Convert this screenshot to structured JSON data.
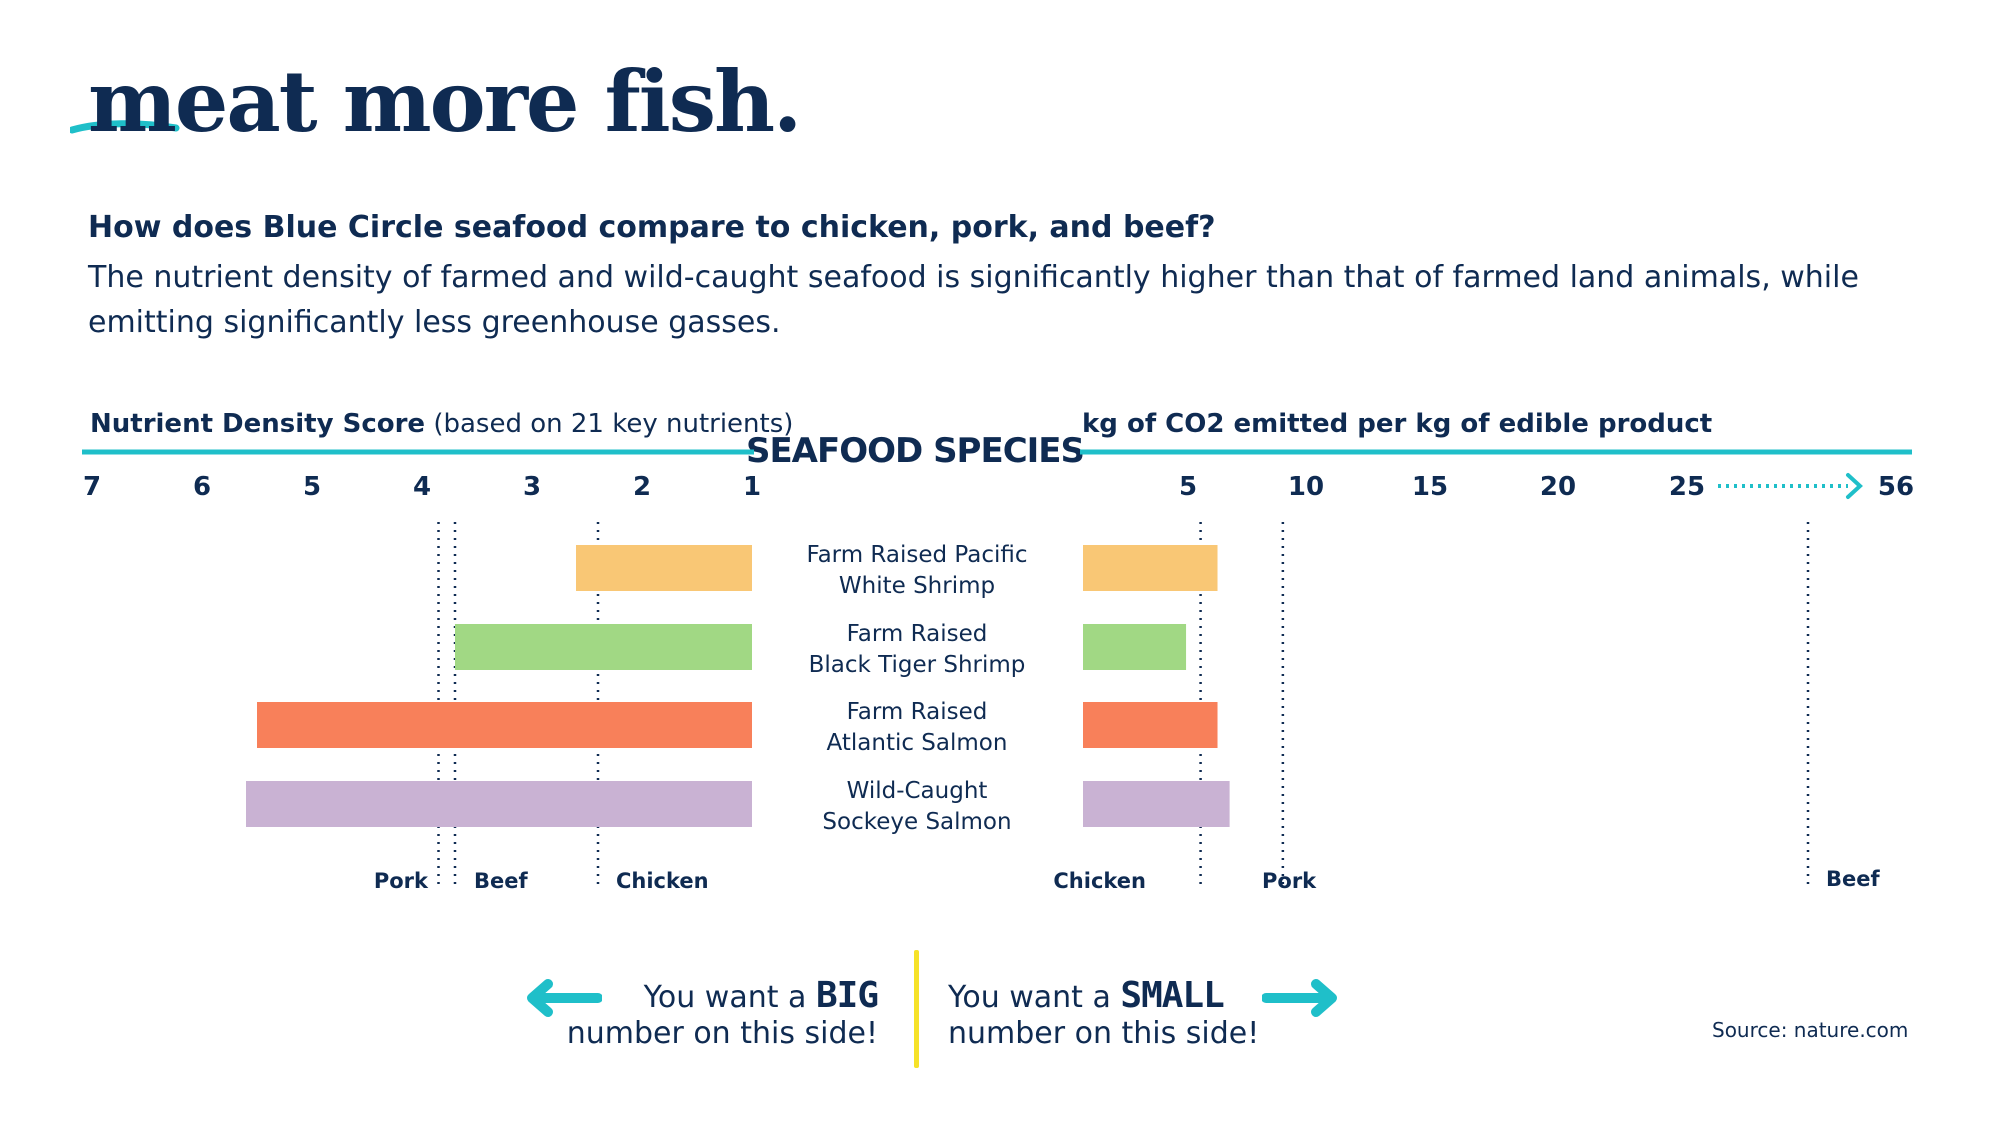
{
  "brand": {
    "logo": "meat more fish.",
    "accent": "#1fbfc9",
    "navy": "#0f2b52"
  },
  "intro": {
    "question": "How does Blue Circle seafood compare to chicken, pork, and beef?",
    "description": "The nutrient density of farmed and wild-caught seafood is significantly higher than that of farmed land animals, while emitting significantly less greenhouse gasses."
  },
  "chart_data": {
    "type": "bar",
    "center_title": "SEAFOOD SPECIES",
    "categories": [
      [
        "Farm Raised Pacific",
        "White Shrimp"
      ],
      [
        "Farm Raised",
        "Black Tiger Shrimp"
      ],
      [
        "Farm Raised",
        "Atlantic Salmon"
      ],
      [
        "Wild-Caught",
        "Sockeye Salmon"
      ]
    ],
    "bar_colors": [
      "#f9c775",
      "#a1d884",
      "#f8805a",
      "#c9b2d3"
    ],
    "left": {
      "title_bold": "Nutrient Density Score",
      "title_rest": " (based on 21 key nutrients)",
      "ticks": [
        7,
        6,
        5,
        4,
        3,
        2,
        1
      ],
      "xlim": [
        1,
        7
      ],
      "reversed": true,
      "values": [
        2.6,
        3.7,
        5.5,
        5.6
      ],
      "references": [
        {
          "name": "Pork",
          "value": 3.85
        },
        {
          "name": "Beef",
          "value": 3.7
        },
        {
          "name": "Chicken",
          "value": 2.4
        }
      ]
    },
    "right": {
      "title": "kg of CO2 emitted per kg of edible product",
      "ticks": [
        "5",
        "10",
        "15",
        "20",
        "25",
        "56"
      ],
      "axis_break": "25 → 56",
      "values": [
        5.6,
        4.3,
        5.6,
        6.1
      ],
      "references": [
        {
          "name": "Chicken",
          "value": 4.9
        },
        {
          "name": "Pork",
          "value": 8.3
        },
        {
          "name": "Beef",
          "value": 56
        }
      ]
    }
  },
  "footer": {
    "left_pre": "You want a ",
    "left_em": "BIG",
    "left_post": "number on this side!",
    "right_pre": "You want a ",
    "right_em": "SMALL",
    "right_post": "number on this side!",
    "source": "Source: nature.com"
  }
}
